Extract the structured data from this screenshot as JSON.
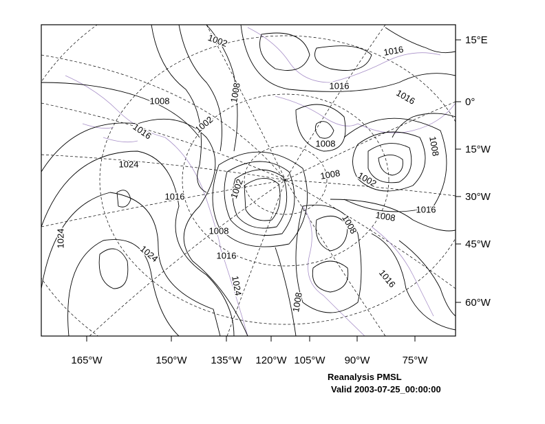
{
  "map": {
    "title": "Reanalysis PMSL",
    "subtitle": "Valid 2003-07-25_00:00:00",
    "x_labels": [
      "165°W",
      "150°W",
      "135°W",
      "120°W",
      "105°W",
      "90°W",
      "75°W"
    ],
    "y_labels": [
      "15°E",
      "0°",
      "15°W",
      "30°W",
      "45°W",
      "60°W"
    ],
    "contour_labels": [
      1002,
      1016,
      1016,
      1016,
      1008,
      1008,
      1002,
      1016,
      1008,
      1008,
      1024,
      1008,
      1002,
      1002,
      1016,
      1016,
      1008,
      1008,
      1024,
      1008,
      1024,
      1016,
      1016,
      1024,
      1008
    ]
  }
}
